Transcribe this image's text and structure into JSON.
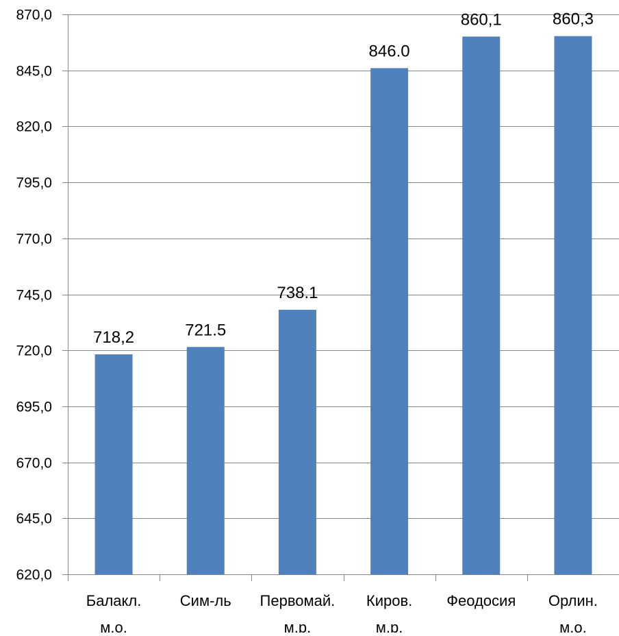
{
  "chart_data": {
    "type": "bar",
    "categories": [
      [
        "Балакл.",
        "м.о."
      ],
      [
        "Сим-ль"
      ],
      [
        "Первомай.",
        "м.р."
      ],
      [
        "Киров.",
        "м.р."
      ],
      [
        "Феодосия"
      ],
      [
        "Орлин.",
        "м.о."
      ]
    ],
    "values": [
      718.2,
      721.5,
      738.1,
      846.0,
      860.1,
      860.3
    ],
    "data_labels": [
      "718,2",
      "721.5",
      "738.1",
      "846.0",
      "860,1",
      "860,3"
    ],
    "ylim": [
      620,
      870
    ],
    "yticks": [
      620,
      645,
      670,
      695,
      720,
      745,
      770,
      795,
      820,
      845,
      870
    ],
    "ytick_labels": [
      "620,0",
      "645,0",
      "670,0",
      "695,0",
      "720,0",
      "745,0",
      "770,0",
      "795,0",
      "820,0",
      "845,0",
      "870,0"
    ],
    "grid": true,
    "bar_color": "#4f81bd",
    "grid_color": "#868686"
  }
}
